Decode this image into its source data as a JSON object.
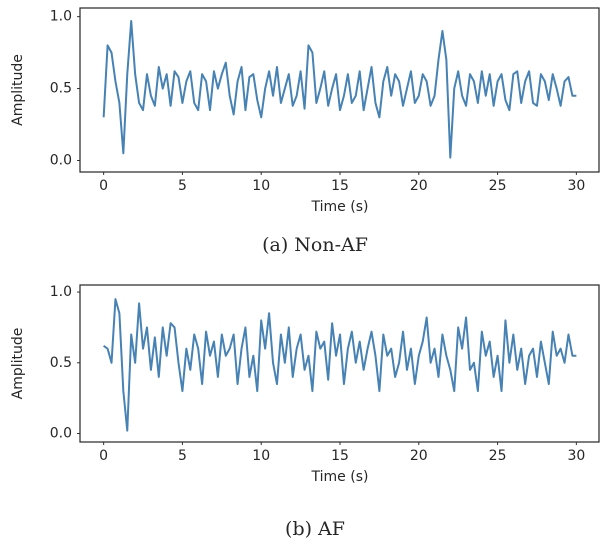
{
  "chart_data": [
    {
      "type": "line",
      "caption": "(a) Non-AF",
      "xlabel": "Time (s)",
      "ylabel": "Amplitude",
      "color": "#4682b4",
      "xlim": [
        -1.5,
        31.5
      ],
      "ylim": [
        -0.08,
        1.06
      ],
      "xticks": [
        0,
        5,
        10,
        15,
        20,
        25,
        30
      ],
      "yticks": [
        {
          "value": 0,
          "label": "0.0"
        },
        0.5,
        {
          "value": 1,
          "label": "1.0"
        }
      ],
      "x": [
        0,
        0.25,
        0.5,
        0.75,
        1,
        1.25,
        1.5,
        1.75,
        2,
        2.25,
        2.5,
        2.75,
        3,
        3.25,
        3.5,
        3.75,
        4,
        4.25,
        4.5,
        4.75,
        5,
        5.25,
        5.5,
        5.75,
        6,
        6.25,
        6.5,
        6.75,
        7,
        7.25,
        7.5,
        7.75,
        8,
        8.25,
        8.5,
        8.75,
        9,
        9.25,
        9.5,
        9.75,
        10,
        10.25,
        10.5,
        10.75,
        11,
        11.25,
        11.5,
        11.75,
        12,
        12.25,
        12.5,
        12.75,
        13,
        13.25,
        13.5,
        13.75,
        14,
        14.25,
        14.5,
        14.75,
        15,
        15.25,
        15.5,
        15.75,
        16,
        16.25,
        16.5,
        16.75,
        17,
        17.25,
        17.5,
        17.75,
        18,
        18.25,
        18.5,
        18.75,
        19,
        19.25,
        19.5,
        19.75,
        20,
        20.25,
        20.5,
        20.75,
        21,
        21.25,
        21.5,
        21.75,
        22,
        22.25,
        22.5,
        22.75,
        23,
        23.25,
        23.5,
        23.75,
        24,
        24.25,
        24.5,
        24.75,
        25,
        25.25,
        25.5,
        25.75,
        26,
        26.25,
        26.5,
        26.75,
        27,
        27.25,
        27.5,
        27.75,
        28,
        28.25,
        28.5,
        28.75,
        29,
        29.25,
        29.5,
        29.75,
        30
      ],
      "values": [
        0.3,
        0.8,
        0.75,
        0.55,
        0.4,
        0.05,
        0.6,
        0.97,
        0.6,
        0.4,
        0.35,
        0.6,
        0.45,
        0.38,
        0.65,
        0.5,
        0.6,
        0.38,
        0.62,
        0.58,
        0.4,
        0.55,
        0.62,
        0.4,
        0.35,
        0.6,
        0.55,
        0.35,
        0.62,
        0.5,
        0.6,
        0.68,
        0.45,
        0.32,
        0.55,
        0.65,
        0.35,
        0.58,
        0.6,
        0.42,
        0.3,
        0.5,
        0.62,
        0.45,
        0.65,
        0.4,
        0.5,
        0.6,
        0.38,
        0.45,
        0.62,
        0.36,
        0.8,
        0.75,
        0.4,
        0.5,
        0.62,
        0.38,
        0.5,
        0.6,
        0.35,
        0.45,
        0.6,
        0.4,
        0.45,
        0.62,
        0.35,
        0.5,
        0.65,
        0.4,
        0.3,
        0.55,
        0.65,
        0.45,
        0.6,
        0.55,
        0.38,
        0.5,
        0.62,
        0.4,
        0.45,
        0.6,
        0.55,
        0.38,
        0.45,
        0.7,
        0.9,
        0.7,
        0.02,
        0.5,
        0.62,
        0.45,
        0.38,
        0.6,
        0.55,
        0.4,
        0.62,
        0.45,
        0.6,
        0.38,
        0.55,
        0.6,
        0.42,
        0.35,
        0.6,
        0.62,
        0.4,
        0.55,
        0.62,
        0.4,
        0.38,
        0.6,
        0.55,
        0.42,
        0.6,
        0.5,
        0.38,
        0.55,
        0.58,
        0.45,
        0.45
      ]
    },
    {
      "type": "line",
      "caption": "(b) AF",
      "xlabel": "Time (s)",
      "ylabel": "Amplitude",
      "color": "#4682b4",
      "xlim": [
        -1.5,
        31.5
      ],
      "ylim": [
        -0.06,
        1.05
      ],
      "xticks": [
        0,
        5,
        10,
        15,
        20,
        25,
        30
      ],
      "yticks": [
        {
          "value": 0,
          "label": "0.0"
        },
        0.5,
        {
          "value": 1,
          "label": "1.0"
        }
      ],
      "x": [
        0,
        0.25,
        0.5,
        0.75,
        1,
        1.25,
        1.5,
        1.75,
        2,
        2.25,
        2.5,
        2.75,
        3,
        3.25,
        3.5,
        3.75,
        4,
        4.25,
        4.5,
        4.75,
        5,
        5.25,
        5.5,
        5.75,
        6,
        6.25,
        6.5,
        6.75,
        7,
        7.25,
        7.5,
        7.75,
        8,
        8.25,
        8.5,
        8.75,
        9,
        9.25,
        9.5,
        9.75,
        10,
        10.25,
        10.5,
        10.75,
        11,
        11.25,
        11.5,
        11.75,
        12,
        12.25,
        12.5,
        12.75,
        13,
        13.25,
        13.5,
        13.75,
        14,
        14.25,
        14.5,
        14.75,
        15,
        15.25,
        15.5,
        15.75,
        16,
        16.25,
        16.5,
        16.75,
        17,
        17.25,
        17.5,
        17.75,
        18,
        18.25,
        18.5,
        18.75,
        19,
        19.25,
        19.5,
        19.75,
        20,
        20.25,
        20.5,
        20.75,
        21,
        21.25,
        21.5,
        21.75,
        22,
        22.25,
        22.5,
        22.75,
        23,
        23.25,
        23.5,
        23.75,
        24,
        24.25,
        24.5,
        24.75,
        25,
        25.25,
        25.5,
        25.75,
        26,
        26.25,
        26.5,
        26.75,
        27,
        27.25,
        27.5,
        27.75,
        28,
        28.25,
        28.5,
        28.75,
        29,
        29.25,
        29.5,
        29.75,
        30
      ],
      "values": [
        0.62,
        0.6,
        0.5,
        0.95,
        0.85,
        0.3,
        0.02,
        0.7,
        0.5,
        0.92,
        0.6,
        0.75,
        0.45,
        0.68,
        0.4,
        0.75,
        0.55,
        0.78,
        0.75,
        0.5,
        0.3,
        0.6,
        0.45,
        0.7,
        0.6,
        0.35,
        0.72,
        0.55,
        0.65,
        0.4,
        0.7,
        0.55,
        0.6,
        0.7,
        0.35,
        0.6,
        0.75,
        0.4,
        0.55,
        0.3,
        0.8,
        0.6,
        0.85,
        0.5,
        0.35,
        0.7,
        0.5,
        0.75,
        0.4,
        0.6,
        0.7,
        0.45,
        0.55,
        0.3,
        0.72,
        0.6,
        0.65,
        0.38,
        0.78,
        0.55,
        0.7,
        0.35,
        0.6,
        0.72,
        0.5,
        0.65,
        0.45,
        0.6,
        0.72,
        0.55,
        0.3,
        0.7,
        0.55,
        0.6,
        0.4,
        0.5,
        0.72,
        0.45,
        0.6,
        0.35,
        0.55,
        0.65,
        0.82,
        0.5,
        0.6,
        0.4,
        0.7,
        0.55,
        0.45,
        0.3,
        0.75,
        0.6,
        0.82,
        0.45,
        0.5,
        0.3,
        0.72,
        0.55,
        0.65,
        0.4,
        0.55,
        0.3,
        0.8,
        0.5,
        0.7,
        0.45,
        0.6,
        0.35,
        0.55,
        0.6,
        0.4,
        0.65,
        0.5,
        0.35,
        0.72,
        0.55,
        0.6,
        0.5,
        0.7,
        0.55,
        0.55
      ]
    }
  ]
}
